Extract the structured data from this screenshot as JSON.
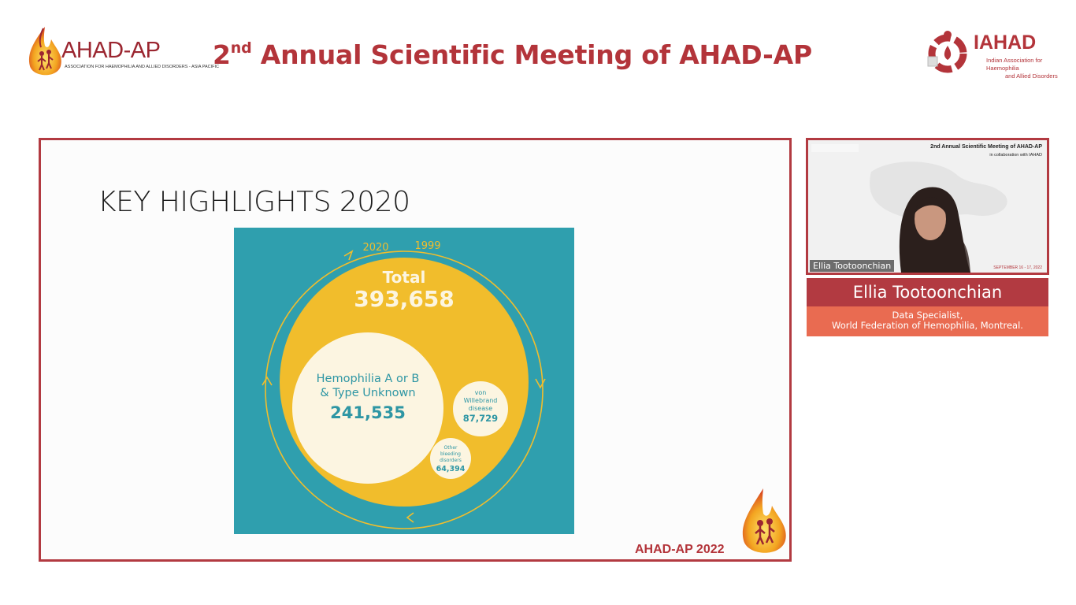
{
  "header": {
    "left_logo": {
      "name": "AHAD-AP",
      "tagline": "ASSOCIATION FOR HAEMOPHILIA AND ALLIED DISORDERS - ASIA PACIFIC"
    },
    "title_ordinal": "2",
    "title_suffix": "nd",
    "title_rest": " Annual Scientific Meeting of AHAD-AP",
    "right_logo": {
      "name": "IAHAD",
      "sub_line1": "Indian Association for Haemophilia",
      "sub_line2": "and Allied Disorders"
    }
  },
  "slide": {
    "title": "KEY HIGHLIGHTS 2020",
    "footer": "AHAD-AP 2022",
    "infographic": {
      "year_start": "2020",
      "year_end": "1999",
      "total_label": "Total",
      "total_value": "393,658",
      "main_line1": "Hemophilia A or B",
      "main_line2": "& Type Unknown",
      "main_value": "241,535",
      "vwd_line1": "von",
      "vwd_line2": "Willebrand",
      "vwd_line3": "disease",
      "vwd_value": "87,729",
      "other_line1": "Other",
      "other_line2": "bleeding",
      "other_line3": "disorders",
      "other_value": "64,394",
      "colors": {
        "teal": "#2f9fae",
        "yellow": "#f1bd2c",
        "cream": "#fcf5e1",
        "text": "#2e96a4"
      }
    }
  },
  "video": {
    "header_title": "2nd Annual Scientific Meeting of AHAD-AP",
    "header_sub": "in collaboration with IAHAD",
    "participant_name": "Ellia Tootoonchian",
    "date": "SEPTEMBER 16 - 17, 2022"
  },
  "speaker": {
    "name": "Ellia Tootoonchian",
    "role_line1": "Data Specialist,",
    "role_line2": "World Federation of Hemophilia, Montreal."
  },
  "colors": {
    "brand_red": "#b23a41",
    "accent_orange": "#e96b51"
  }
}
